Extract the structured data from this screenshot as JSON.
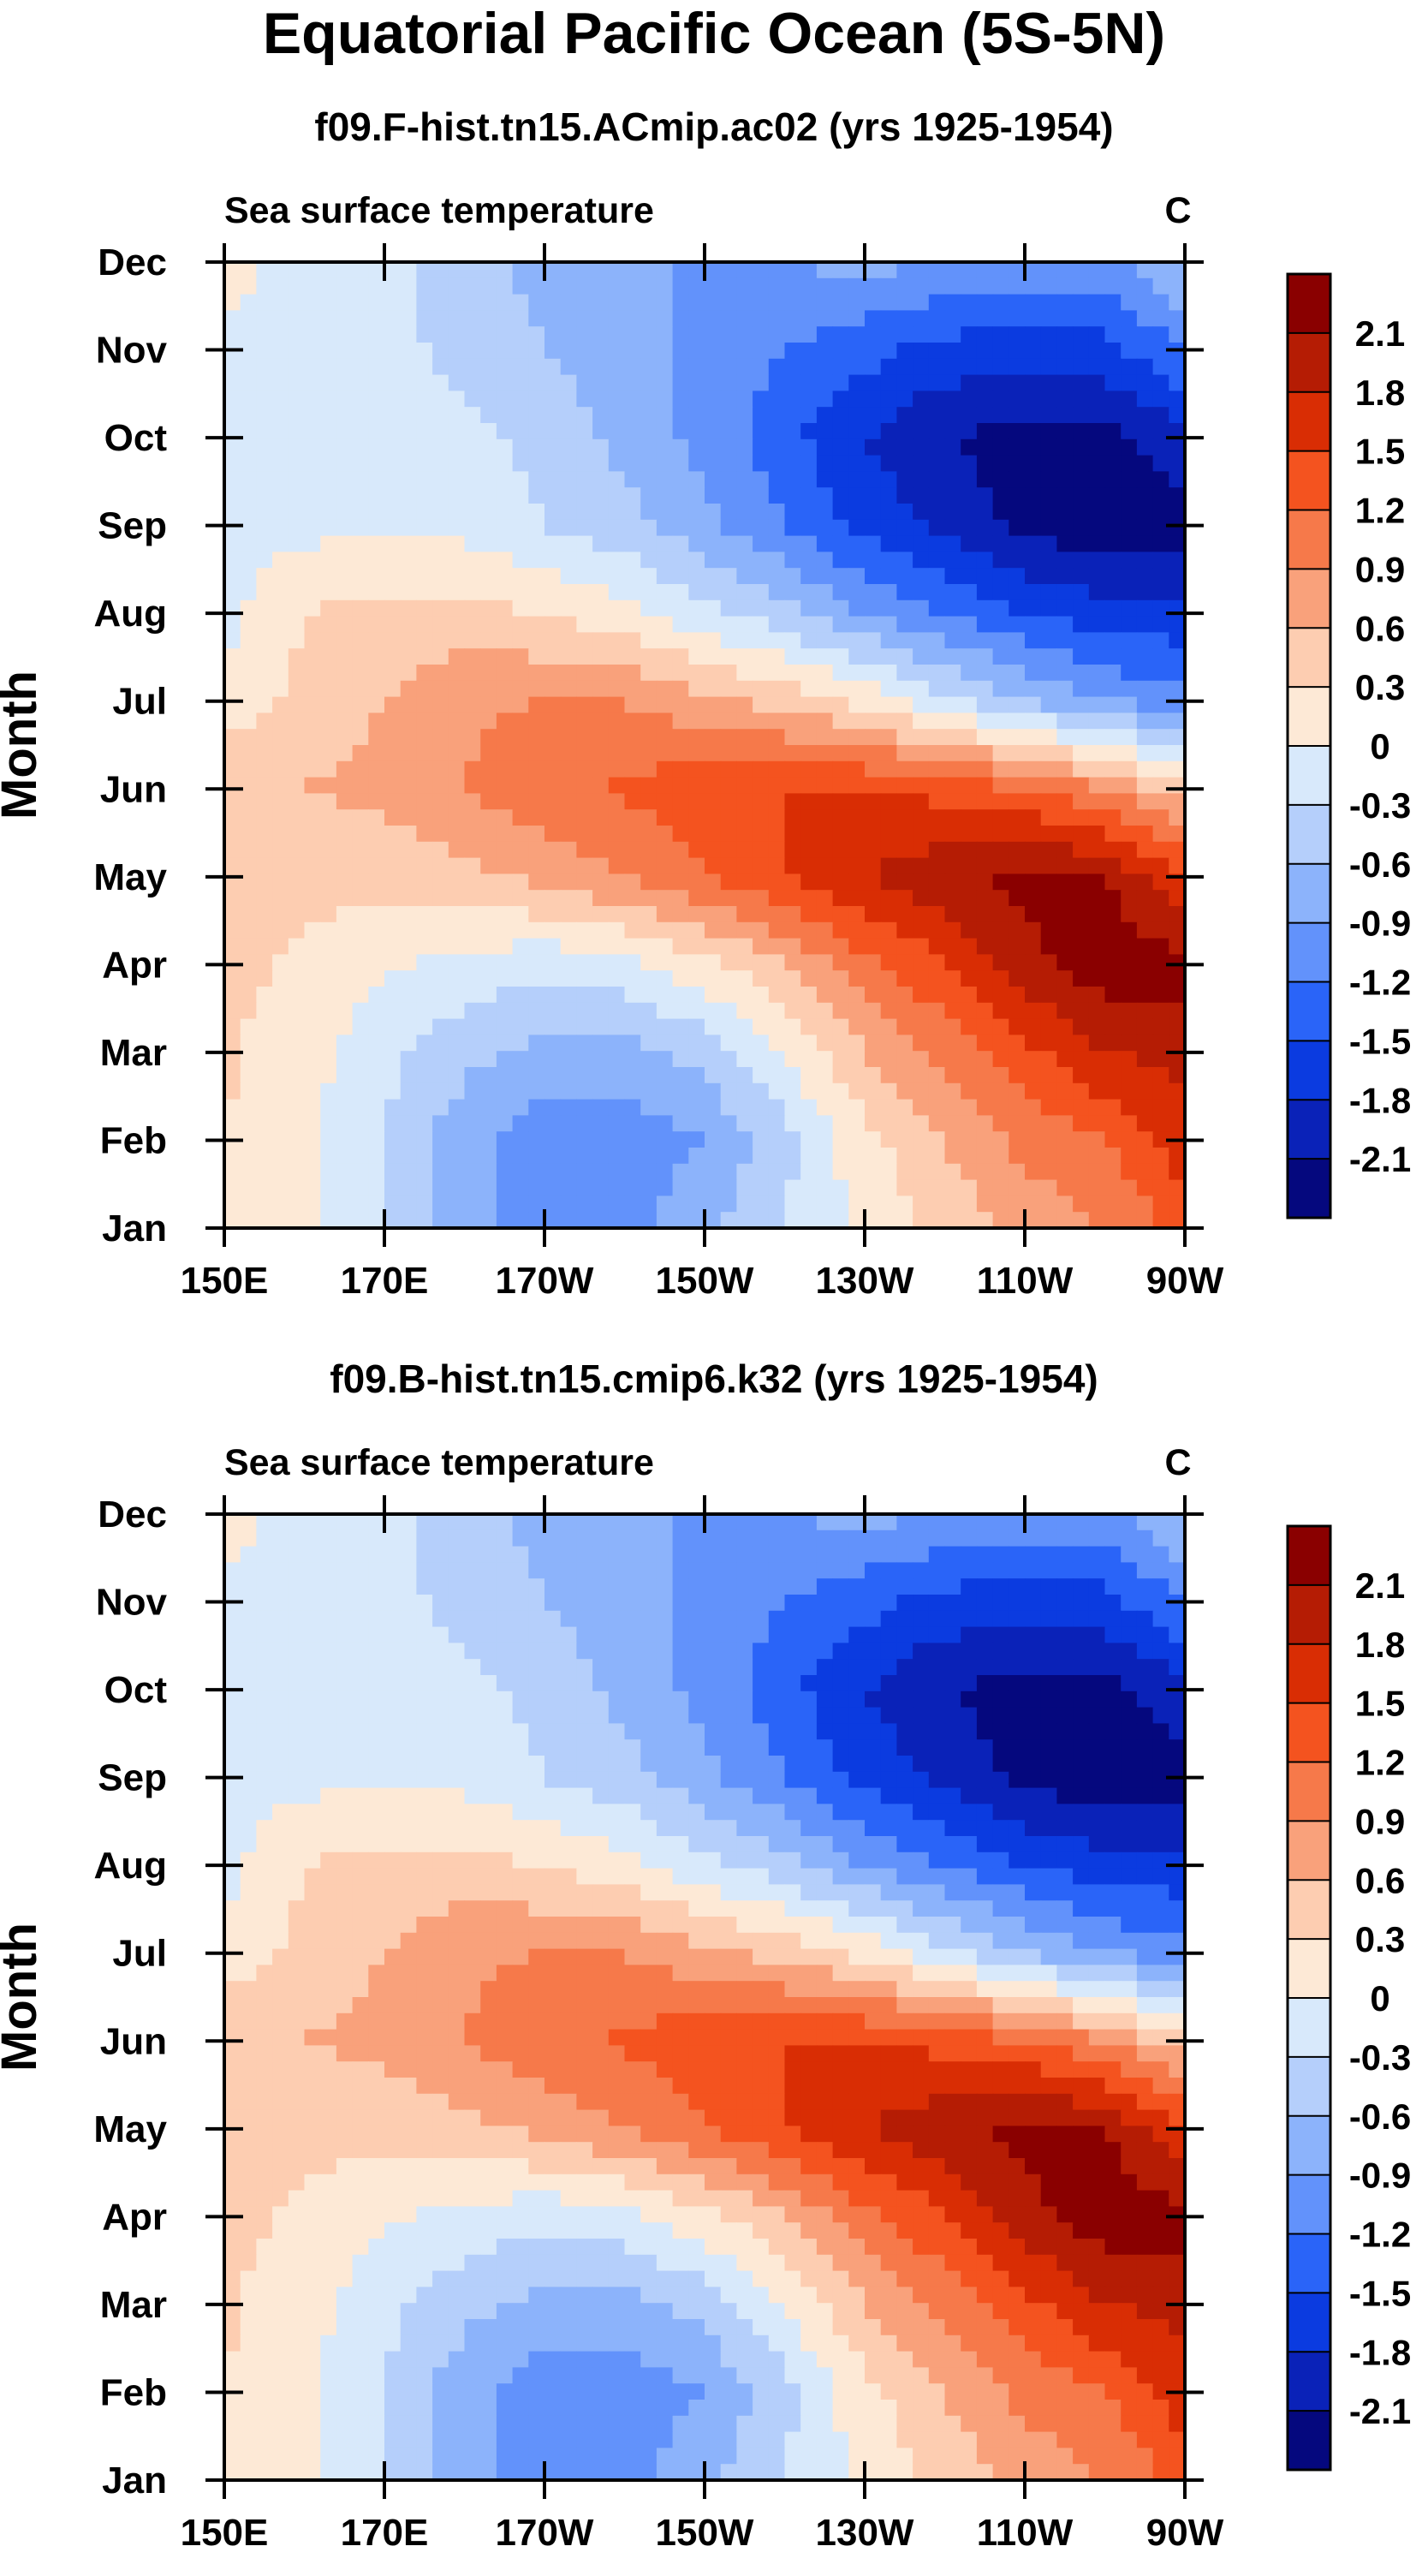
{
  "title": "Equatorial Pacific Ocean (5S-5N)",
  "chart_data": [
    {
      "type": "heatmap",
      "subtitle": "f09.F-hist.tn15.ACmip.ac02 (yrs 1925-1954)",
      "left_label": "Sea surface temperature",
      "right_label": "C",
      "ylabel": "Month",
      "xlabel": "",
      "x_ticks": [
        "150E",
        "170E",
        "170W",
        "150W",
        "130W",
        "110W",
        "90W"
      ],
      "y_ticks": [
        "Jan",
        "Feb",
        "Mar",
        "Apr",
        "May",
        "Jun",
        "Jul",
        "Aug",
        "Sep",
        "Oct",
        "Nov",
        "Dec"
      ],
      "colorbar_labels": [
        "2.1",
        "1.8",
        "1.5",
        "1.2",
        "0.9",
        "0.6",
        "0.3",
        "0",
        "-0.3",
        "-0.6",
        "-0.9",
        "-1.2",
        "-1.5",
        "-1.8",
        "-2.1"
      ],
      "colorbar_colors": [
        "#8a0000",
        "#b51c04",
        "#d92d04",
        "#f4531f",
        "#f6794a",
        "#f9a17b",
        "#fdcdb1",
        "#fde9d6",
        "#d8e9fb",
        "#b5cffb",
        "#8cb3fb",
        "#6292fb",
        "#2a64f8",
        "#0b3be0",
        "#0a22b8",
        "#05087e"
      ],
      "lon": [
        150,
        160,
        170,
        180,
        190,
        200,
        210,
        220,
        230,
        240,
        250,
        260,
        270
      ],
      "anomaly": [
        [
          0.3,
          0.1,
          -0.3,
          -0.8,
          -1.1,
          -1.0,
          -0.7,
          -0.3,
          0.1,
          0.4,
          0.7,
          0.9,
          1.3
        ],
        [
          0.3,
          0.1,
          -0.3,
          -0.8,
          -1.1,
          -1.1,
          -0.9,
          -0.4,
          0.2,
          0.6,
          1.0,
          1.2,
          1.7
        ],
        [
          0.35,
          0.1,
          -0.2,
          -0.5,
          -0.7,
          -0.7,
          -0.5,
          0.0,
          0.6,
          1.0,
          1.4,
          1.8,
          1.9
        ],
        [
          0.4,
          0.25,
          0.05,
          -0.1,
          -0.2,
          -0.1,
          0.2,
          0.6,
          1.1,
          1.5,
          2.0,
          2.3,
          2.2
        ],
        [
          0.5,
          0.4,
          0.4,
          0.5,
          0.7,
          0.9,
          1.2,
          1.5,
          1.8,
          2.0,
          2.2,
          2.1,
          1.5
        ],
        [
          0.6,
          0.6,
          0.7,
          0.9,
          1.1,
          1.25,
          1.4,
          1.5,
          1.5,
          1.4,
          1.2,
          0.9,
          0.4
        ],
        [
          0.1,
          0.4,
          0.6,
          0.85,
          0.9,
          0.9,
          0.7,
          0.5,
          0.2,
          -0.2,
          -0.6,
          -0.9,
          -1.1
        ],
        [
          -0.1,
          0.3,
          0.4,
          0.4,
          0.3,
          0.1,
          -0.2,
          -0.5,
          -0.9,
          -1.2,
          -1.5,
          -1.7,
          -1.7
        ],
        [
          -0.1,
          -0.1,
          -0.05,
          -0.1,
          -0.3,
          -0.5,
          -0.8,
          -1.2,
          -1.6,
          -1.9,
          -2.2,
          -2.3,
          -2.2
        ],
        [
          -0.1,
          -0.1,
          -0.1,
          -0.2,
          -0.4,
          -0.7,
          -1.0,
          -1.4,
          -1.8,
          -2.1,
          -2.2,
          -2.2,
          -1.9
        ],
        [
          -0.05,
          -0.1,
          -0.2,
          -0.4,
          -0.6,
          -0.8,
          -1.0,
          -1.2,
          -1.4,
          -1.6,
          -1.7,
          -1.6,
          -1.2
        ],
        [
          0.1,
          -0.1,
          -0.2,
          -0.5,
          -0.7,
          -0.9,
          -0.9,
          -0.9,
          -0.8,
          -0.9,
          -1.0,
          -1.0,
          -0.5
        ]
      ]
    },
    {
      "type": "heatmap",
      "subtitle": "f09.B-hist.tn15.cmip6.k32 (yrs 1925-1954)",
      "left_label": "Sea surface temperature",
      "right_label": "C",
      "ylabel": "Month",
      "xlabel": "",
      "x_ticks": [
        "150E",
        "170E",
        "170W",
        "150W",
        "130W",
        "110W",
        "90W"
      ],
      "y_ticks": [
        "Jan",
        "Feb",
        "Mar",
        "Apr",
        "May",
        "Jun",
        "Jul",
        "Aug",
        "Sep",
        "Oct",
        "Nov",
        "Dec"
      ],
      "colorbar_labels": [
        "2.1",
        "1.8",
        "1.5",
        "1.2",
        "0.9",
        "0.6",
        "0.3",
        "0",
        "-0.3",
        "-0.6",
        "-0.9",
        "-1.2",
        "-1.5",
        "-1.8",
        "-2.1"
      ],
      "colorbar_colors": [
        "#8a0000",
        "#b51c04",
        "#d92d04",
        "#f4531f",
        "#f6794a",
        "#f9a17b",
        "#fdcdb1",
        "#fde9d6",
        "#d8e9fb",
        "#b5cffb",
        "#8cb3fb",
        "#6292fb",
        "#2a64f8",
        "#0b3be0",
        "#0a22b8",
        "#05087e"
      ],
      "lon": [
        150,
        160,
        170,
        180,
        190,
        200,
        210,
        220,
        230,
        240,
        250,
        260,
        270
      ],
      "anomaly": [
        [
          0.3,
          0.1,
          -0.3,
          -0.8,
          -1.1,
          -1.0,
          -0.7,
          -0.3,
          0.1,
          0.4,
          0.7,
          0.9,
          1.3
        ],
        [
          0.3,
          0.1,
          -0.3,
          -0.8,
          -1.1,
          -1.1,
          -0.9,
          -0.4,
          0.2,
          0.6,
          1.0,
          1.2,
          1.7
        ],
        [
          0.35,
          0.1,
          -0.2,
          -0.5,
          -0.7,
          -0.7,
          -0.5,
          0.0,
          0.6,
          1.0,
          1.4,
          1.8,
          1.9
        ],
        [
          0.4,
          0.25,
          0.05,
          -0.1,
          -0.2,
          -0.1,
          0.2,
          0.6,
          1.1,
          1.5,
          2.0,
          2.3,
          2.2
        ],
        [
          0.5,
          0.4,
          0.4,
          0.5,
          0.7,
          0.9,
          1.2,
          1.5,
          1.8,
          2.0,
          2.2,
          2.1,
          1.5
        ],
        [
          0.6,
          0.6,
          0.7,
          0.9,
          1.1,
          1.25,
          1.4,
          1.5,
          1.5,
          1.4,
          1.2,
          0.9,
          0.4
        ],
        [
          0.1,
          0.4,
          0.6,
          0.85,
          0.9,
          0.9,
          0.7,
          0.5,
          0.2,
          -0.2,
          -0.6,
          -0.9,
          -1.1
        ],
        [
          -0.1,
          0.3,
          0.4,
          0.4,
          0.3,
          0.1,
          -0.2,
          -0.5,
          -0.9,
          -1.2,
          -1.5,
          -1.7,
          -1.7
        ],
        [
          -0.1,
          -0.1,
          -0.05,
          -0.1,
          -0.3,
          -0.5,
          -0.8,
          -1.2,
          -1.6,
          -1.9,
          -2.2,
          -2.3,
          -2.2
        ],
        [
          -0.1,
          -0.1,
          -0.1,
          -0.2,
          -0.4,
          -0.7,
          -1.0,
          -1.4,
          -1.8,
          -2.1,
          -2.2,
          -2.2,
          -1.9
        ],
        [
          -0.05,
          -0.1,
          -0.2,
          -0.4,
          -0.6,
          -0.8,
          -1.0,
          -1.2,
          -1.4,
          -1.6,
          -1.7,
          -1.6,
          -1.2
        ],
        [
          0.1,
          -0.1,
          -0.2,
          -0.5,
          -0.7,
          -0.9,
          -0.9,
          -0.9,
          -0.8,
          -0.9,
          -1.0,
          -1.0,
          -0.5
        ]
      ]
    }
  ]
}
